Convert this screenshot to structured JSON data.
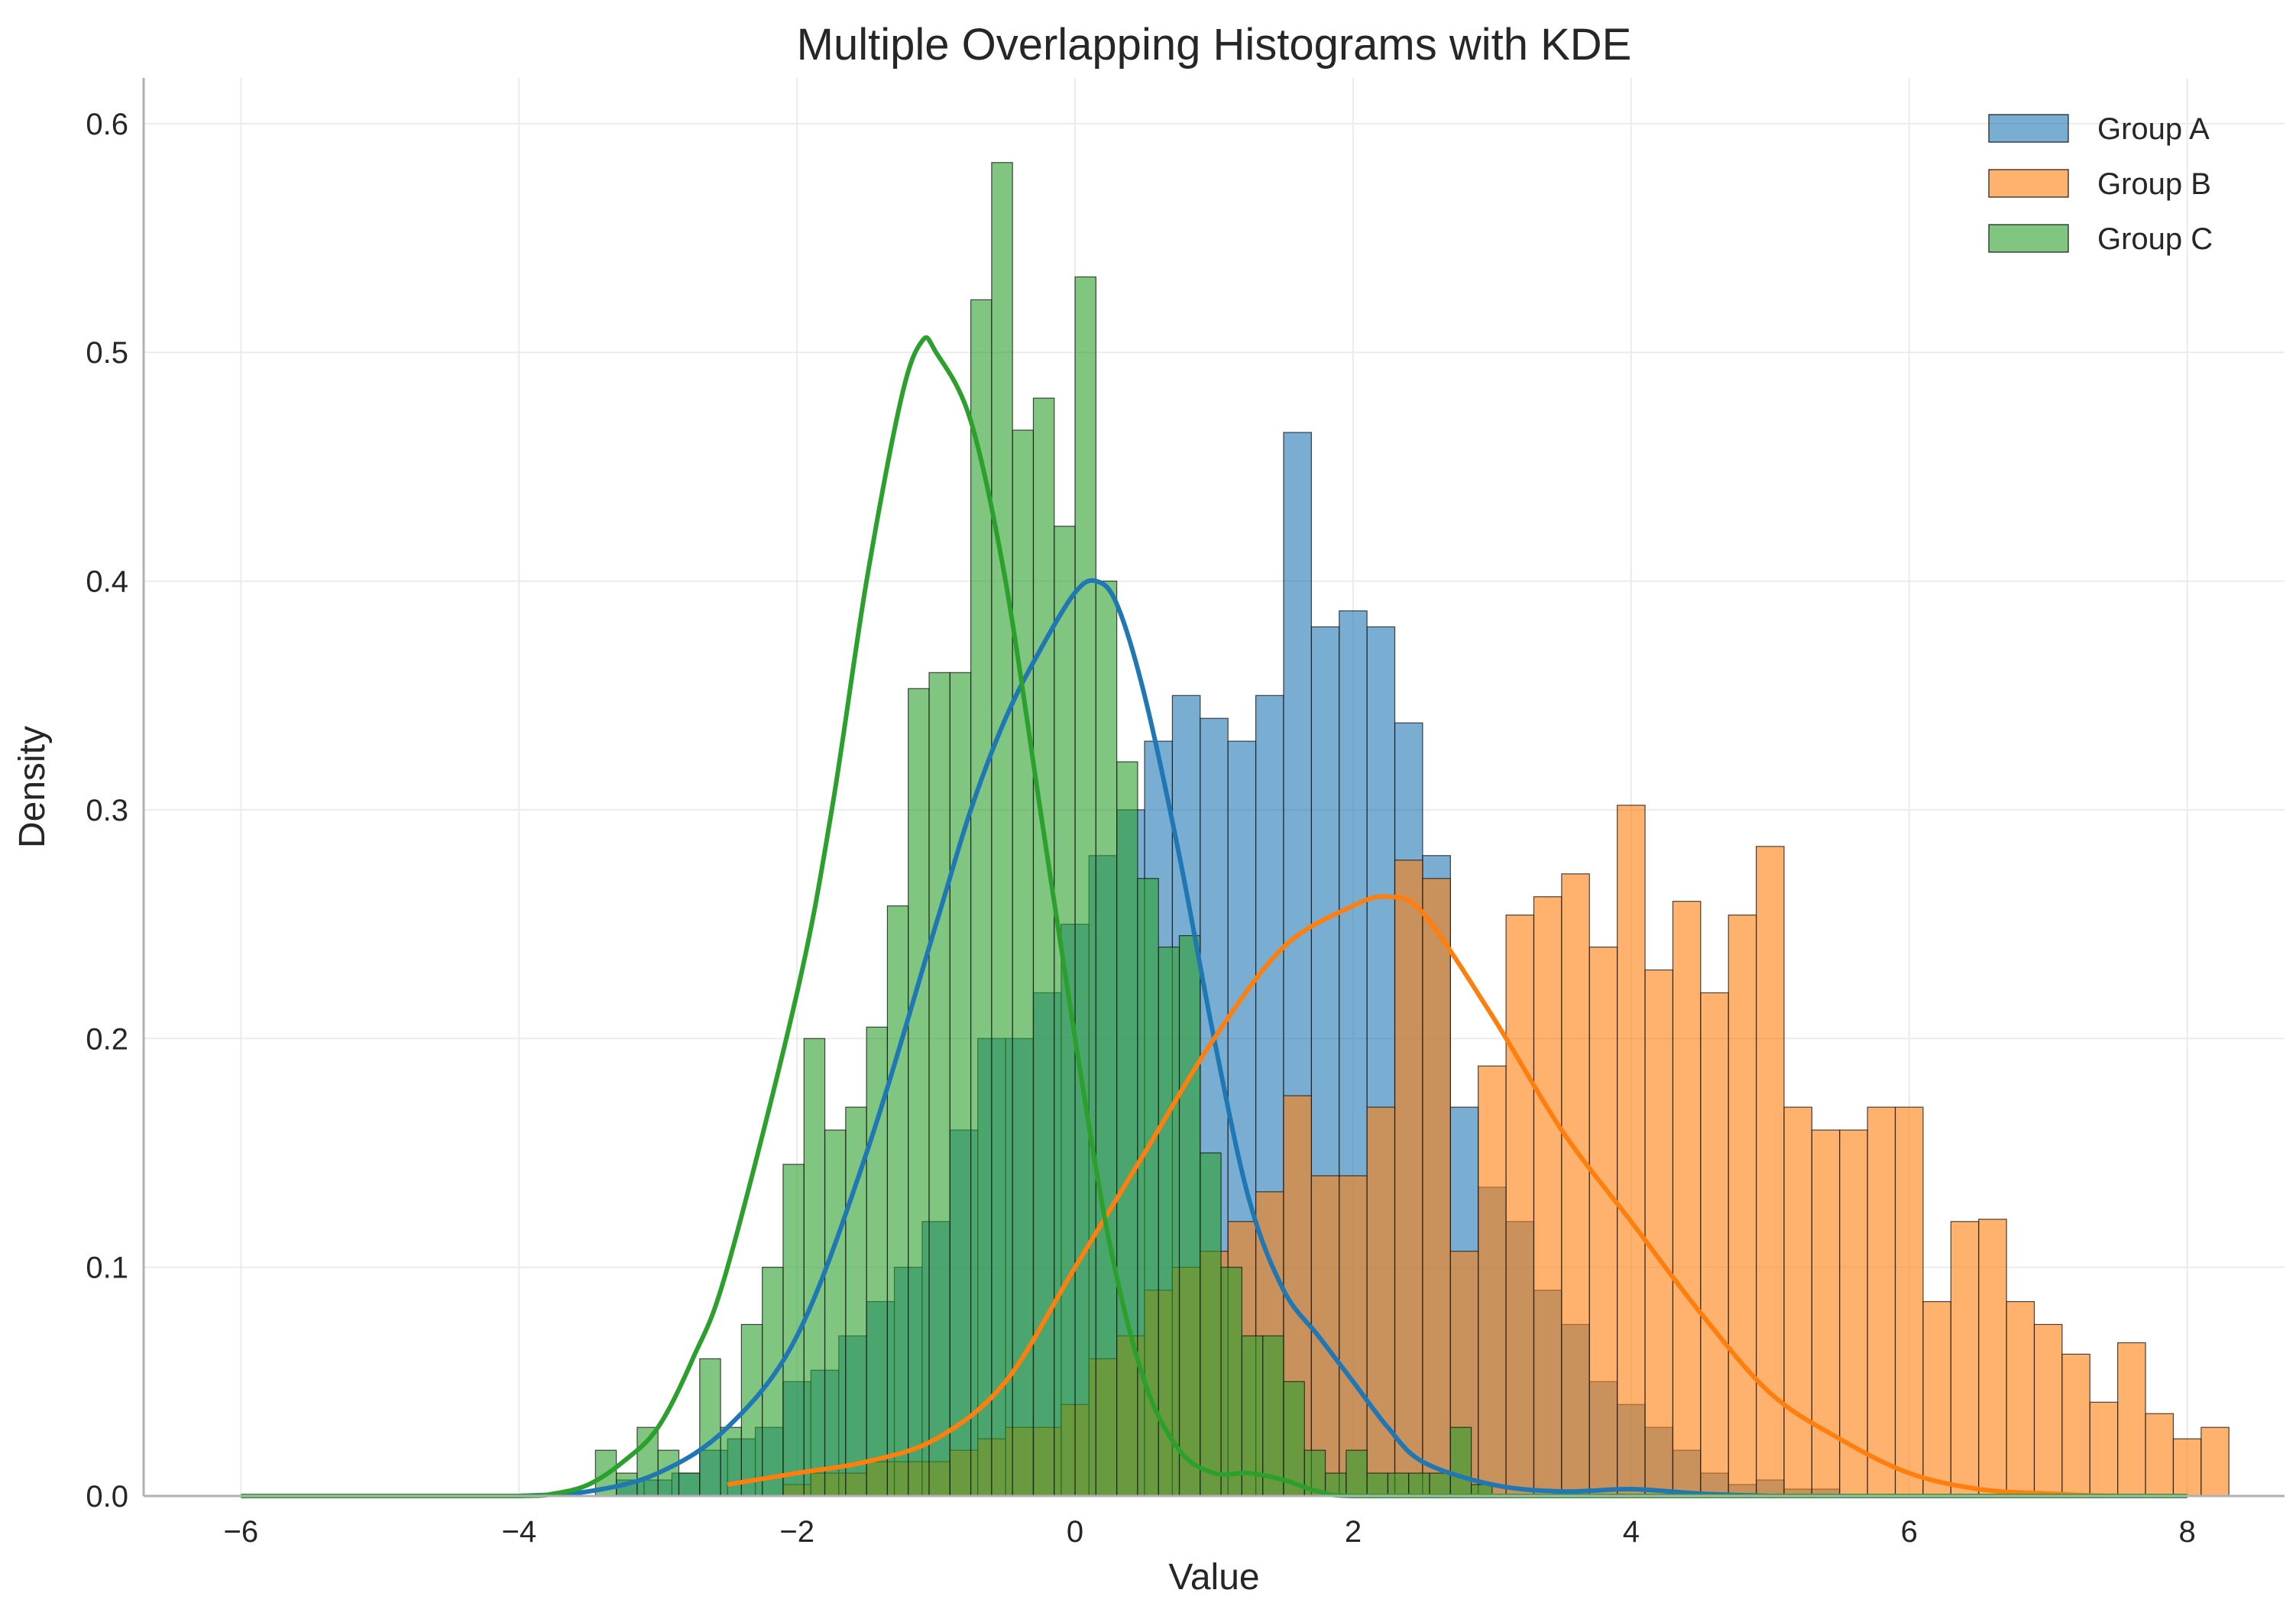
{
  "chart_data": {
    "type": "histogram",
    "title": "Multiple Overlapping Histograms with KDE",
    "xlabel": "Value",
    "ylabel": "Density",
    "xlim": [
      -6.7,
      8.7
    ],
    "ylim": [
      0,
      0.62
    ],
    "xticks": [
      -6,
      -4,
      -2,
      0,
      2,
      4,
      6,
      8
    ],
    "xtick_labels": [
      "−6",
      "−4",
      "−2",
      "0",
      "2",
      "4",
      "6",
      "8"
    ],
    "yticks": [
      0.0,
      0.1,
      0.2,
      0.3,
      0.4,
      0.5,
      0.6
    ],
    "ytick_labels": [
      "0.0",
      "0.1",
      "0.2",
      "0.3",
      "0.4",
      "0.5",
      "0.6"
    ],
    "grid": true,
    "legend_position": "top-right",
    "series": [
      {
        "name": "Group A",
        "color": "#1f77b4",
        "bin_start": -3.3,
        "bin_width": 0.2,
        "values": [
          0.007,
          0.007,
          0.01,
          0.02,
          0.025,
          0.03,
          0.05,
          0.055,
          0.07,
          0.085,
          0.1,
          0.12,
          0.16,
          0.2,
          0.2,
          0.22,
          0.25,
          0.28,
          0.3,
          0.33,
          0.35,
          0.34,
          0.33,
          0.35,
          0.465,
          0.38,
          0.387,
          0.38,
          0.338,
          0.28,
          0.17,
          0.135,
          0.12,
          0.09,
          0.075,
          0.05,
          0.04,
          0.03,
          0.02,
          0.01,
          0.005,
          0.007,
          0.003,
          0.003
        ],
        "kde_x": [
          -4,
          -3.5,
          -3,
          -2.5,
          -2,
          -1.5,
          -1,
          -0.75,
          -0.5,
          -0.25,
          0,
          0.15,
          0.3,
          0.5,
          0.75,
          1,
          1.25,
          1.5,
          1.75,
          2,
          2.25,
          2.5,
          3,
          3.5,
          4,
          4.5,
          5
        ],
        "kde_y": [
          0,
          0.002,
          0.01,
          0.03,
          0.07,
          0.15,
          0.25,
          0.3,
          0.34,
          0.37,
          0.395,
          0.4,
          0.39,
          0.35,
          0.28,
          0.2,
          0.13,
          0.09,
          0.07,
          0.05,
          0.03,
          0.015,
          0.005,
          0.002,
          0.003,
          0.001,
          0
        ]
      },
      {
        "name": "Group B",
        "color": "#ff7f0e",
        "bin_start": -2.1,
        "bin_width": 0.2,
        "values": [
          0.005,
          0.01,
          0.01,
          0.015,
          0.015,
          0.015,
          0.02,
          0.025,
          0.03,
          0.03,
          0.04,
          0.06,
          0.07,
          0.09,
          0.1,
          0.107,
          0.12,
          0.133,
          0.175,
          0.14,
          0.14,
          0.17,
          0.278,
          0.27,
          0.107,
          0.188,
          0.254,
          0.262,
          0.272,
          0.24,
          0.302,
          0.23,
          0.26,
          0.22,
          0.254,
          0.284,
          0.17,
          0.16,
          0.16,
          0.17,
          0.17,
          0.085,
          0.12,
          0.121,
          0.085,
          0.075,
          0.062,
          0.041,
          0.067,
          0.036,
          0.025,
          0.03
        ],
        "kde_x": [
          -2.5,
          -2,
          -1.5,
          -1,
          -0.5,
          0,
          0.5,
          1,
          1.5,
          2,
          2.25,
          2.5,
          3,
          3.5,
          4,
          4.5,
          5,
          5.5,
          6,
          6.5,
          7,
          7.5,
          8
        ],
        "kde_y": [
          0.005,
          0.01,
          0.015,
          0.025,
          0.05,
          0.1,
          0.15,
          0.2,
          0.24,
          0.258,
          0.262,
          0.255,
          0.21,
          0.16,
          0.12,
          0.08,
          0.045,
          0.025,
          0.01,
          0.003,
          0.001,
          0,
          0
        ]
      },
      {
        "name": "Group C",
        "color": "#2ca02c",
        "bin_start": -3.45,
        "bin_width": 0.15,
        "values": [
          0.02,
          0.01,
          0.03,
          0.02,
          0.01,
          0.06,
          0.03,
          0.075,
          0.1,
          0.145,
          0.2,
          0.16,
          0.17,
          0.205,
          0.258,
          0.353,
          0.36,
          0.36,
          0.523,
          0.583,
          0.466,
          0.48,
          0.424,
          0.533,
          0.4,
          0.321,
          0.27,
          0.24,
          0.245,
          0.15,
          0.1,
          0.07,
          0.07,
          0.05,
          0.02,
          0.01,
          0.02,
          0.01,
          0.01,
          0.01,
          0.01,
          0.03,
          0.005
        ],
        "kde_x": [
          -6,
          -5,
          -4,
          -3.75,
          -3.5,
          -3.25,
          -3,
          -2.75,
          -2.5,
          -2,
          -1.75,
          -1.5,
          -1.25,
          -1.1,
          -1,
          -0.75,
          -0.5,
          -0.25,
          0,
          0.25,
          0.5,
          0.75,
          1,
          1.25,
          1.5,
          1.75,
          2,
          3,
          4,
          6,
          8
        ],
        "kde_y": [
          0,
          0,
          0.0,
          0.001,
          0.005,
          0.015,
          0.03,
          0.06,
          0.1,
          0.22,
          0.3,
          0.4,
          0.48,
          0.505,
          0.5,
          0.47,
          0.4,
          0.3,
          0.2,
          0.11,
          0.05,
          0.02,
          0.01,
          0.01,
          0.007,
          0.002,
          0,
          0,
          0,
          0,
          0
        ]
      }
    ]
  }
}
